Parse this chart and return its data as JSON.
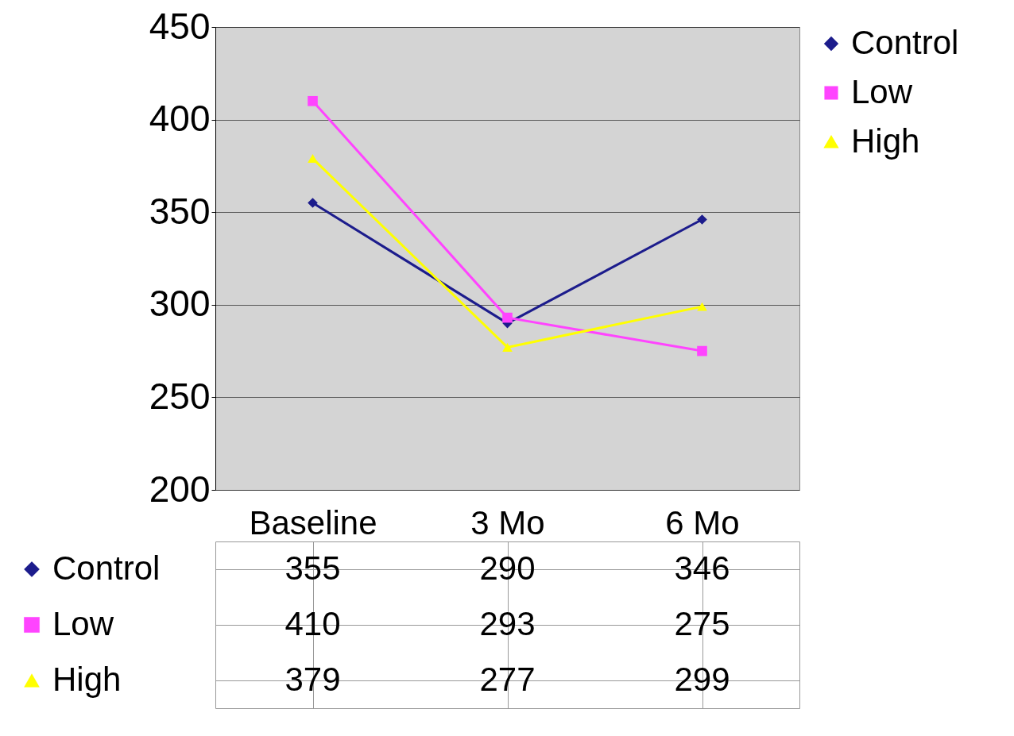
{
  "chart_data": {
    "type": "line",
    "categories": [
      "Baseline",
      "3 Mo",
      "6 Mo"
    ],
    "series": [
      {
        "name": "Control",
        "color": "#1c1c8c",
        "marker": "diamond",
        "values": [
          355,
          290,
          346
        ]
      },
      {
        "name": "Low",
        "color": "#ff44ff",
        "marker": "square",
        "values": [
          410,
          293,
          275
        ]
      },
      {
        "name": "High",
        "color": "#ffff00",
        "marker": "triangle",
        "values": [
          379,
          277,
          299
        ]
      }
    ],
    "ylim": [
      200,
      450
    ],
    "yticks": [
      200,
      250,
      300,
      350,
      400,
      450
    ],
    "grid": "y",
    "legend": "right",
    "data_labels": true
  }
}
